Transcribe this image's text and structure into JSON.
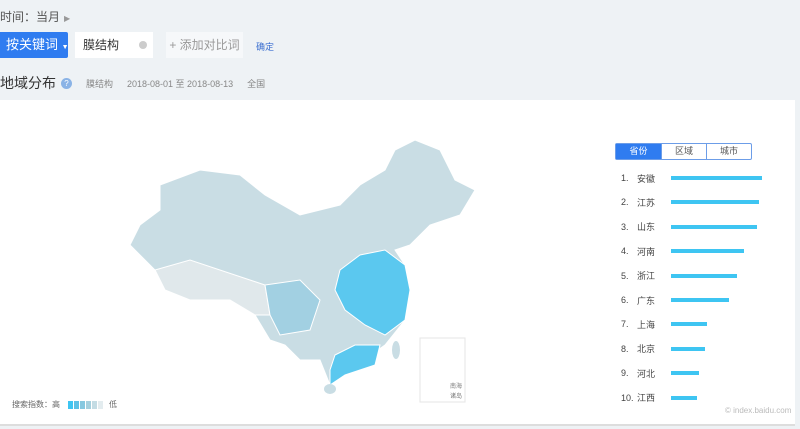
{
  "header": {
    "time_label": "时间：当月",
    "keyword_mode": "按关键词",
    "keyword": "膜结构",
    "add_compare": "+ 添加对比词",
    "confirm": "确定"
  },
  "section": {
    "title": "地域分布",
    "help": "?",
    "keyword": "膜结构",
    "date_range": "2018-08-01 至 2018-08-13",
    "region": "全国"
  },
  "tabs": [
    "省份",
    "区域",
    "城市"
  ],
  "ranking": [
    {
      "rank": "1.",
      "name": "安徽",
      "value": 100
    },
    {
      "rank": "2.",
      "name": "江苏",
      "value": 97
    },
    {
      "rank": "3.",
      "name": "山东",
      "value": 95
    },
    {
      "rank": "4.",
      "name": "河南",
      "value": 80
    },
    {
      "rank": "5.",
      "name": "浙江",
      "value": 73
    },
    {
      "rank": "6.",
      "name": "广东",
      "value": 64
    },
    {
      "rank": "7.",
      "name": "上海",
      "value": 40
    },
    {
      "rank": "8.",
      "name": "北京",
      "value": 37
    },
    {
      "rank": "9.",
      "name": "河北",
      "value": 31
    },
    {
      "rank": "10.",
      "name": "江西",
      "value": 29
    }
  ],
  "legend": {
    "label": "搜索指数：高",
    "low": "低",
    "colors": [
      "#3ec5f2",
      "#5cc1e6",
      "#86c8e0",
      "#a5d0de",
      "#c4dce4",
      "#e3ecef"
    ]
  },
  "map": {
    "inset_label_1": "南海",
    "inset_label_2": "诸岛"
  },
  "watermark": "© index.baidu.com",
  "colors": {
    "accent": "#2f7cf0",
    "bar": "#3ec5f2"
  }
}
